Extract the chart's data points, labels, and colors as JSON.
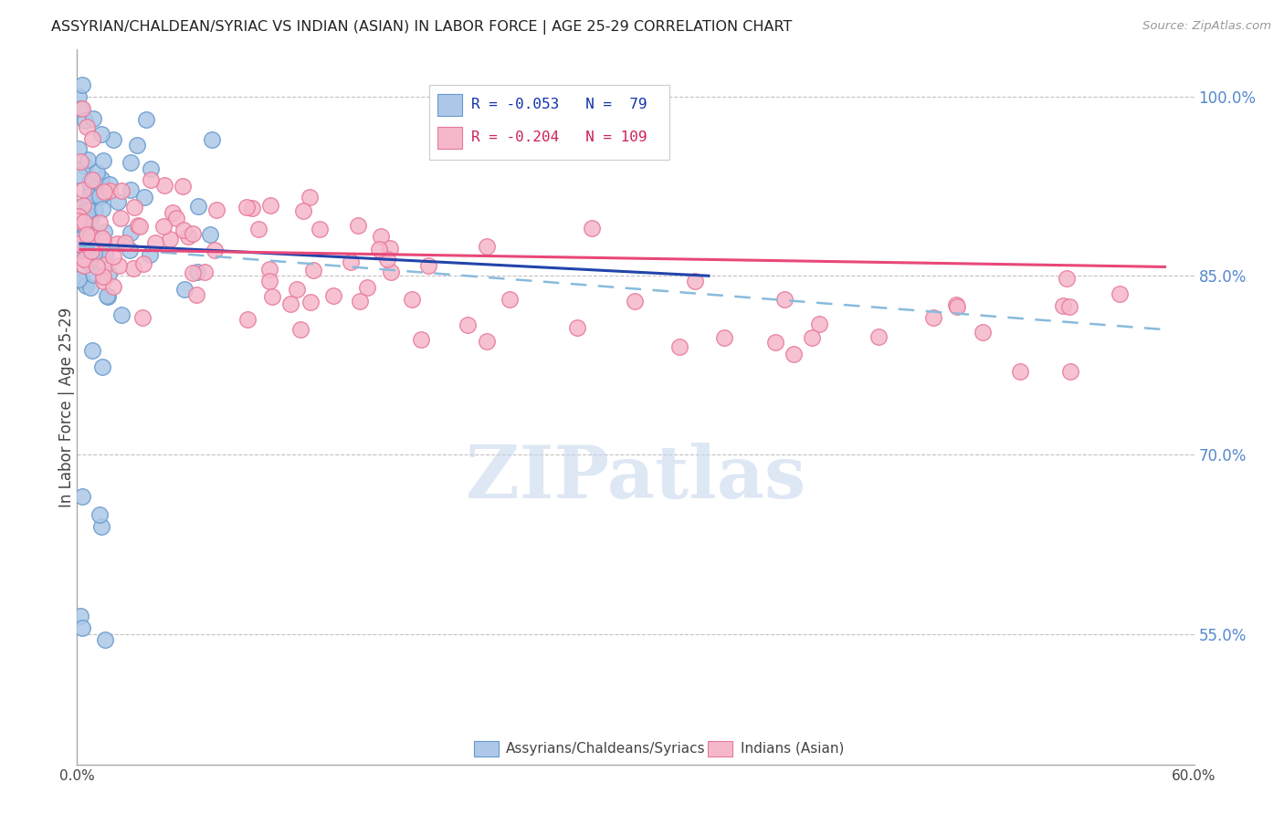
{
  "title": "ASSYRIAN/CHALDEAN/SYRIAC VS INDIAN (ASIAN) IN LABOR FORCE | AGE 25-29 CORRELATION CHART",
  "source": "Source: ZipAtlas.com",
  "ylabel": "In Labor Force | Age 25-29",
  "right_ytick_values": [
    0.55,
    0.7,
    0.85,
    1.0
  ],
  "right_ytick_labels": [
    "55.0%",
    "70.0%",
    "85.0%",
    "100.0%"
  ],
  "blue_R": -0.053,
  "blue_N": 79,
  "pink_R": -0.204,
  "pink_N": 109,
  "blue_color": "#adc8e8",
  "blue_edge_color": "#6699cc",
  "pink_color": "#f5b8ca",
  "pink_edge_color": "#e87898",
  "blue_line_color": "#2244aa",
  "pink_line_color": "#e84878",
  "blue_dash_color": "#88bbdd",
  "watermark": "ZIPatlas",
  "watermark_color": "#c8d8ee",
  "background_color": "#ffffff",
  "grid_color": "#bbbbbb",
  "xlim": [
    0.0,
    0.6
  ],
  "ylim": [
    0.44,
    1.04
  ]
}
